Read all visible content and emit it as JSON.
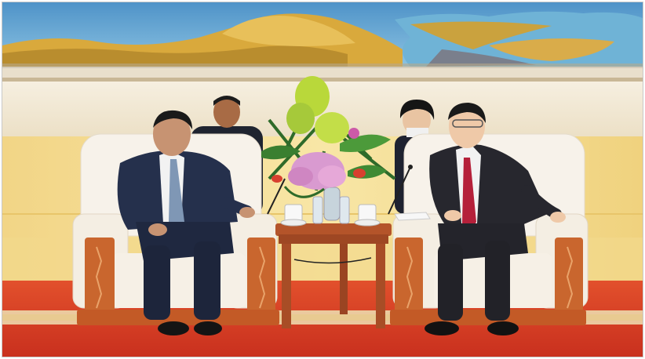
{
  "photo": {
    "subject": "meeting-photo",
    "colors": {
      "painting_sky": "#5c9fd0",
      "painting_water": "#6fb3d6",
      "painting_foliage": "#d6a73a",
      "wall_cream": "#f3ead6",
      "wall_panel": "#f4dc92",
      "carpet_red": "#d53b24",
      "chair_white": "#f7f2ea",
      "chair_wood": "#c9662e",
      "table_wood": "#b4542a",
      "suit_navy": "#25304c",
      "tie_blue": "#7f97b5",
      "tie_red": "#b5203a",
      "flowers_yellow": "#b9d83a",
      "flowers_pink": "#d99ad0"
    }
  }
}
